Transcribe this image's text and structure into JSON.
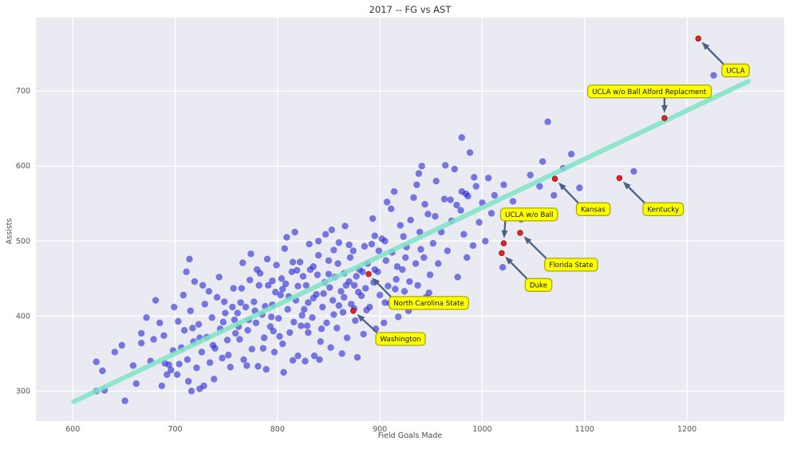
{
  "figure": {
    "title": "2017 -- FG vs AST",
    "xlabel": "Field Goals Made",
    "ylabel": "Assists"
  },
  "chart_data": {
    "type": "scatter",
    "title": "2017 -- FG vs AST",
    "xlabel": "Field Goals Made",
    "ylabel": "Assists",
    "xlim": [
      564,
      1295
    ],
    "ylim": [
      260,
      798
    ],
    "xticks": [
      600,
      700,
      800,
      900,
      1000,
      1100,
      1200
    ],
    "yticks": [
      300,
      400,
      500,
      600,
      700
    ],
    "grid": true,
    "legend": "none",
    "colors": {
      "plot_bg": "#eaeaf2",
      "grid": "#ffffff",
      "point": "#2d2dd4",
      "line": "#7fe4c5",
      "highlight_point": "#e01a1a",
      "highlight_edge": "#7a0000",
      "arrow": "#4a6285",
      "label_bg": "#ffff00",
      "label_border": "#aaaa00"
    },
    "regression_line": {
      "x1": 601,
      "y1": 286,
      "x2": 1260,
      "y2": 713
    },
    "annotated_points": [
      {
        "label": "Washington",
        "point": [
          874,
          407
        ],
        "label_pos": [
          896,
          378
        ]
      },
      {
        "label": "North Carolina State",
        "point": [
          889,
          456
        ],
        "label_pos": [
          909,
          426
        ]
      },
      {
        "label": "Duke",
        "point": [
          1019,
          484
        ],
        "label_pos": [
          1042,
          450
        ]
      },
      {
        "label": "Florida State",
        "point": [
          1037,
          511
        ],
        "label_pos": [
          1061,
          477
        ]
      },
      {
        "label": "UCLA w/o Ball",
        "point": [
          1021,
          497
        ],
        "label_pos": [
          1018,
          544
        ]
      },
      {
        "label": "Kansas",
        "point": [
          1071,
          583
        ],
        "label_pos": [
          1092,
          551
        ]
      },
      {
        "label": "Kentucky",
        "point": [
          1134,
          584
        ],
        "label_pos": [
          1157,
          551
        ]
      },
      {
        "label": "UCLA w/o Ball Alford Replacment",
        "point": [
          1178,
          664
        ],
        "label_pos": [
          1103,
          708
        ]
      },
      {
        "label": "UCLA",
        "point": [
          1211,
          770
        ],
        "label_pos": [
          1234,
          736
        ]
      }
    ],
    "points": [
      [
        623,
        339
      ],
      [
        629,
        327
      ],
      [
        623,
        300
      ],
      [
        631,
        301
      ],
      [
        651,
        287
      ],
      [
        667,
        377
      ],
      [
        667,
        364
      ],
      [
        676,
        340
      ],
      [
        689,
        374
      ],
      [
        690,
        337
      ],
      [
        694,
        335
      ],
      [
        692,
        322
      ],
      [
        687,
        307
      ],
      [
        704,
        336
      ],
      [
        716,
        300
      ],
      [
        724,
        303
      ],
      [
        714,
        476
      ],
      [
        641,
        352
      ],
      [
        659,
        334
      ],
      [
        672,
        398
      ],
      [
        681,
        421
      ],
      [
        698,
        354
      ],
      [
        662,
        310
      ],
      [
        648,
        361
      ],
      [
        685,
        391
      ],
      [
        699,
        412
      ],
      [
        679,
        369
      ],
      [
        696,
        328
      ],
      [
        706,
        358
      ],
      [
        709,
        381
      ],
      [
        712,
        342
      ],
      [
        715,
        407
      ],
      [
        718,
        366
      ],
      [
        721,
        331
      ],
      [
        723,
        389
      ],
      [
        726,
        352
      ],
      [
        729,
        416
      ],
      [
        731,
        372
      ],
      [
        734,
        338
      ],
      [
        736,
        398
      ],
      [
        739,
        357
      ],
      [
        741,
        425
      ],
      [
        744,
        383
      ],
      [
        746,
        344
      ],
      [
        749,
        404
      ],
      [
        751,
        368
      ],
      [
        754,
        332
      ],
      [
        756,
        412
      ],
      [
        759,
        377
      ],
      [
        703,
        393
      ],
      [
        708,
        428
      ],
      [
        713,
        313
      ],
      [
        719,
        446
      ],
      [
        724,
        371
      ],
      [
        728,
        307
      ],
      [
        733,
        433
      ],
      [
        738,
        316
      ],
      [
        743,
        452
      ],
      [
        747,
        392
      ],
      [
        752,
        348
      ],
      [
        757,
        437
      ],
      [
        702,
        322
      ],
      [
        711,
        459
      ],
      [
        717,
        384
      ],
      [
        727,
        441
      ],
      [
        737,
        361
      ],
      [
        748,
        419
      ],
      [
        758,
        395
      ],
      [
        761,
        404
      ],
      [
        763,
        369
      ],
      [
        765,
        437
      ],
      [
        767,
        342
      ],
      [
        769,
        412
      ],
      [
        771,
        381
      ],
      [
        773,
        448
      ],
      [
        775,
        356
      ],
      [
        777,
        419
      ],
      [
        779,
        391
      ],
      [
        781,
        333
      ],
      [
        783,
        457
      ],
      [
        785,
        402
      ],
      [
        787,
        371
      ],
      [
        789,
        329
      ],
      [
        791,
        441
      ],
      [
        793,
        386
      ],
      [
        795,
        415
      ],
      [
        797,
        352
      ],
      [
        799,
        468
      ],
      [
        801,
        397
      ],
      [
        803,
        428
      ],
      [
        805,
        363
      ],
      [
        806,
        325
      ],
      [
        808,
        443
      ],
      [
        810,
        409
      ],
      [
        812,
        378
      ],
      [
        814,
        459
      ],
      [
        816,
        392
      ],
      [
        818,
        421
      ],
      [
        820,
        347
      ],
      [
        822,
        472
      ],
      [
        824,
        401
      ],
      [
        762,
        386
      ],
      [
        766,
        471
      ],
      [
        770,
        334
      ],
      [
        774,
        483
      ],
      [
        778,
        407
      ],
      [
        782,
        441
      ],
      [
        786,
        357
      ],
      [
        790,
        476
      ],
      [
        794,
        399
      ],
      [
        798,
        432
      ],
      [
        802,
        373
      ],
      [
        807,
        490
      ],
      [
        811,
        426
      ],
      [
        815,
        341
      ],
      [
        819,
        461
      ],
      [
        823,
        387
      ],
      [
        764,
        418
      ],
      [
        772,
        395
      ],
      [
        780,
        462
      ],
      [
        788,
        413
      ],
      [
        796,
        380
      ],
      [
        804,
        450
      ],
      [
        809,
        505
      ],
      [
        817,
        512
      ],
      [
        826,
        409
      ],
      [
        828,
        441
      ],
      [
        830,
        378
      ],
      [
        832,
        462
      ],
      [
        834,
        398
      ],
      [
        836,
        347
      ],
      [
        838,
        429
      ],
      [
        840,
        481
      ],
      [
        842,
        366
      ],
      [
        844,
        412
      ],
      [
        846,
        445
      ],
      [
        848,
        391
      ],
      [
        850,
        474
      ],
      [
        852,
        358
      ],
      [
        854,
        421
      ],
      [
        856,
        452
      ],
      [
        858,
        384
      ],
      [
        860,
        498
      ],
      [
        862,
        433
      ],
      [
        864,
        405
      ],
      [
        866,
        520
      ],
      [
        868,
        371
      ],
      [
        870,
        446
      ],
      [
        872,
        416
      ],
      [
        874,
        487
      ],
      [
        876,
        394
      ],
      [
        878,
        345
      ],
      [
        880,
        462
      ],
      [
        882,
        427
      ],
      [
        884,
        376
      ],
      [
        827,
        340
      ],
      [
        831,
        496
      ],
      [
        835,
        424
      ],
      [
        839,
        455
      ],
      [
        843,
        383
      ],
      [
        847,
        509
      ],
      [
        851,
        438
      ],
      [
        855,
        402
      ],
      [
        859,
        470
      ],
      [
        863,
        350
      ],
      [
        867,
        441
      ],
      [
        871,
        478
      ],
      [
        875,
        410
      ],
      [
        879,
        432
      ],
      [
        883,
        459
      ],
      [
        829,
        387
      ],
      [
        841,
        342
      ],
      [
        853,
        515
      ],
      [
        865,
        425
      ],
      [
        877,
        453
      ],
      [
        886,
        437
      ],
      [
        888,
        470
      ],
      [
        890,
        412
      ],
      [
        892,
        496
      ],
      [
        894,
        445
      ],
      [
        896,
        383
      ],
      [
        898,
        459
      ],
      [
        900,
        428
      ],
      [
        902,
        503
      ],
      [
        904,
        391
      ],
      [
        906,
        474
      ],
      [
        908,
        440
      ],
      [
        910,
        417
      ],
      [
        912,
        485
      ],
      [
        914,
        566
      ],
      [
        916,
        449
      ],
      [
        918,
        399
      ],
      [
        920,
        521
      ],
      [
        922,
        462
      ],
      [
        924,
        433
      ],
      [
        926,
        492
      ],
      [
        928,
        407
      ],
      [
        930,
        528
      ],
      [
        933,
        558
      ],
      [
        936,
        575
      ],
      [
        938,
        590
      ],
      [
        941,
        600
      ],
      [
        935,
        470
      ],
      [
        937,
        441
      ],
      [
        939,
        512
      ],
      [
        943,
        478
      ],
      [
        945,
        425
      ],
      [
        947,
        536
      ],
      [
        949,
        455
      ],
      [
        887,
        408
      ],
      [
        893,
        530
      ],
      [
        899,
        487
      ],
      [
        905,
        418
      ],
      [
        911,
        543
      ],
      [
        917,
        466
      ],
      [
        923,
        506
      ],
      [
        929,
        446
      ],
      [
        934,
        414
      ],
      [
        940,
        489
      ],
      [
        944,
        549
      ],
      [
        948,
        431
      ],
      [
        895,
        507
      ],
      [
        907,
        552
      ],
      [
        955,
        580
      ],
      [
        964,
        601
      ],
      [
        969,
        555
      ],
      [
        975,
        548
      ],
      [
        980,
        638
      ],
      [
        980,
        566
      ],
      [
        984,
        563
      ],
      [
        986,
        560
      ],
      [
        992,
        585
      ],
      [
        952,
        497
      ],
      [
        954,
        533
      ],
      [
        957,
        470
      ],
      [
        960,
        512
      ],
      [
        963,
        556
      ],
      [
        966,
        487
      ],
      [
        970,
        527
      ],
      [
        973,
        596
      ],
      [
        976,
        452
      ],
      [
        979,
        541
      ],
      [
        982,
        509
      ],
      [
        985,
        478
      ],
      [
        988,
        618
      ],
      [
        991,
        494
      ],
      [
        994,
        573
      ],
      [
        997,
        525
      ],
      [
        1000,
        551
      ],
      [
        1003,
        500
      ],
      [
        1006,
        584
      ],
      [
        1009,
        537
      ],
      [
        1012,
        561
      ],
      [
        1021,
        575
      ],
      [
        1030,
        553
      ],
      [
        1056,
        573
      ],
      [
        1059,
        606
      ],
      [
        1064,
        659
      ],
      [
        1070,
        561
      ],
      [
        1079,
        597
      ],
      [
        1020,
        465
      ],
      [
        1038,
        529
      ],
      [
        1047,
        588
      ],
      [
        1087,
        616
      ],
      [
        1095,
        571
      ],
      [
        1148,
        593
      ],
      [
        1226,
        721
      ],
      [
        795,
        447
      ],
      [
        805,
        436
      ],
      [
        815,
        472
      ],
      [
        825,
        453
      ],
      [
        835,
        466
      ],
      [
        845,
        430
      ],
      [
        855,
        488
      ],
      [
        865,
        457
      ],
      [
        875,
        441
      ],
      [
        885,
        493
      ],
      [
        895,
        462
      ],
      [
        905,
        500
      ],
      [
        915,
        436
      ],
      [
        925,
        478
      ],
      [
        820,
        440
      ],
      [
        830,
        418
      ],
      [
        840,
        500
      ],
      [
        850,
        456
      ],
      [
        860,
        414
      ],
      [
        870,
        495
      ]
    ]
  }
}
